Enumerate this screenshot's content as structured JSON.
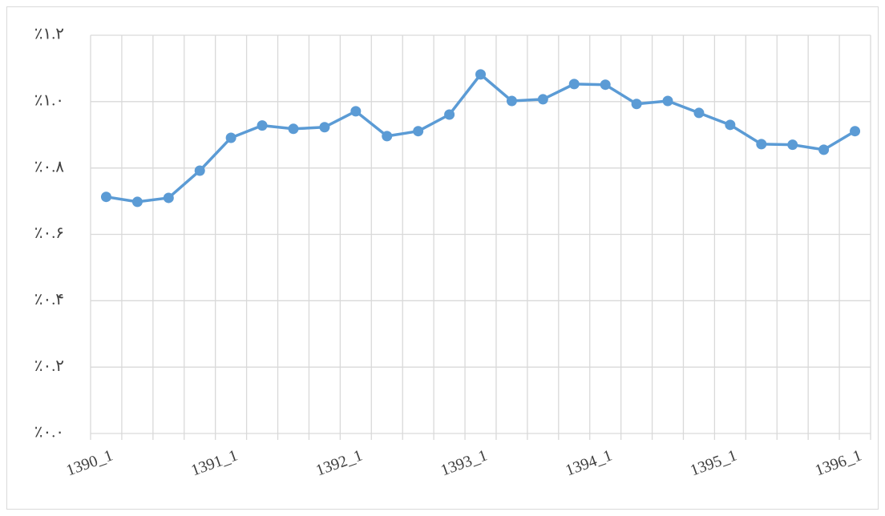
{
  "chart_data": {
    "type": "line",
    "categories": [
      "1390_1",
      null,
      null,
      null,
      "1391_1",
      null,
      null,
      null,
      "1392_1",
      null,
      null,
      null,
      "1393_1",
      null,
      null,
      null,
      "1394_1",
      null,
      null,
      null,
      "1395_1",
      null,
      null,
      null,
      "1396_1"
    ],
    "series": [
      {
        "color": "#5b9bd5",
        "values": [
          0.713,
          0.698,
          0.71,
          0.792,
          0.891,
          0.928,
          0.918,
          0.923,
          0.971,
          0.896,
          0.911,
          0.961,
          1.082,
          1.002,
          1.007,
          1.053,
          1.051,
          0.993,
          1.002,
          0.966,
          0.93,
          0.872,
          0.87,
          0.855,
          0.911
        ]
      }
    ],
    "ylim": [
      0,
      1.2
    ],
    "yticks": [
      {
        "value": 0,
        "label": "٪۰.۰"
      },
      {
        "value": 0.2,
        "label": "٪۰.۲"
      },
      {
        "value": 0.4,
        "label": "٪۰.۴"
      },
      {
        "value": 0.6,
        "label": "٪۰.۶"
      },
      {
        "value": 0.8,
        "label": "٪۰.۸"
      },
      {
        "value": 1,
        "label": "٪۱.۰"
      },
      {
        "value": 1.2,
        "label": "٪۱.۲"
      }
    ],
    "grid": true
  }
}
